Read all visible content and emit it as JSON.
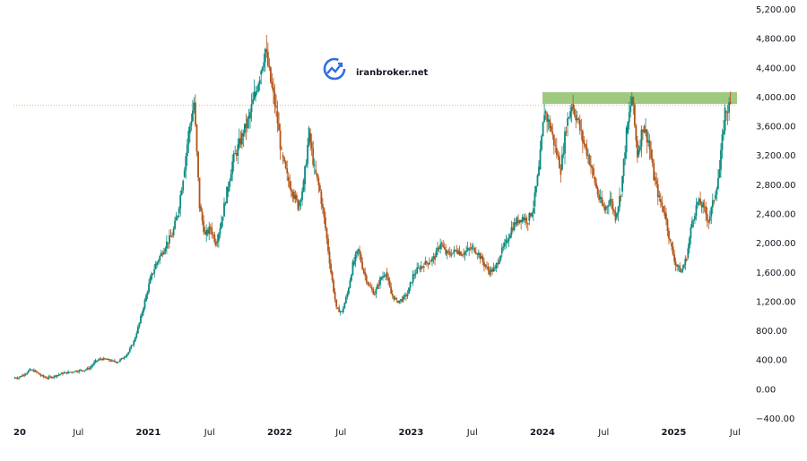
{
  "watermark": {
    "text": "iranbroker.net",
    "icon": "growth-chart-icon"
  },
  "colors": {
    "up": "#0b8a7e",
    "down": "#b25418",
    "resistance_zone": "#8fbf6a",
    "price_line": "#f0b35a",
    "axis_text": "#131722"
  },
  "chart_data": {
    "type": "candlestick",
    "title": "",
    "xlabel": "",
    "ylabel": "",
    "ylim": [
      -400,
      5200
    ],
    "y_ticks": [
      "5,200.00",
      "4,800.00",
      "4,400.00",
      "4,000.00",
      "3,600.00",
      "3,200.00",
      "2,800.00",
      "2,400.00",
      "2,000.00",
      "1,600.00",
      "1,200.00",
      "800.00",
      "400.00",
      "0.00",
      "−400.00"
    ],
    "y_tick_values": [
      5200,
      4800,
      4400,
      4000,
      3600,
      3200,
      2800,
      2400,
      2000,
      1600,
      1200,
      800,
      400,
      0,
      -400
    ],
    "x_ticks": [
      {
        "label": "20",
        "month": 0,
        "bold": true
      },
      {
        "label": "Jul",
        "month": 6,
        "bold": false
      },
      {
        "label": "2021",
        "month": 12,
        "bold": true
      },
      {
        "label": "Jul",
        "month": 18,
        "bold": false
      },
      {
        "label": "2022",
        "month": 24,
        "bold": true
      },
      {
        "label": "Jul",
        "month": 30,
        "bold": false
      },
      {
        "label": "2023",
        "month": 36,
        "bold": true
      },
      {
        "label": "Jul",
        "month": 42,
        "bold": false
      },
      {
        "label": "2024",
        "month": 48,
        "bold": true
      },
      {
        "label": "Jul",
        "month": 54,
        "bold": false
      },
      {
        "label": "2025",
        "month": 60,
        "bold": true
      },
      {
        "label": "Jul",
        "month": 66,
        "bold": false
      }
    ],
    "x_range_months": [
      0,
      70
    ],
    "current_price": 3880,
    "resistance_zone": {
      "low": 3900,
      "high": 4060,
      "start_month": 48,
      "end_month": 70
    },
    "series": [
      {
        "type": "candlestick",
        "values": [
          [
            0.0,
            150
          ],
          [
            0.5,
            160
          ],
          [
            1.0,
            200
          ],
          [
            1.5,
            260
          ],
          [
            2.0,
            240
          ],
          [
            2.5,
            180
          ],
          [
            3.0,
            150
          ],
          [
            3.5,
            160
          ],
          [
            4.0,
            190
          ],
          [
            4.5,
            210
          ],
          [
            5.0,
            225
          ],
          [
            5.5,
            240
          ],
          [
            6.0,
            250
          ],
          [
            6.5,
            260
          ],
          [
            7.0,
            290
          ],
          [
            7.5,
            380
          ],
          [
            8.0,
            410
          ],
          [
            8.5,
            400
          ],
          [
            9.0,
            380
          ],
          [
            9.5,
            370
          ],
          [
            10.0,
            420
          ],
          [
            10.5,
            500
          ],
          [
            11.0,
            650
          ],
          [
            11.5,
            900
          ],
          [
            12.0,
            1200
          ],
          [
            12.5,
            1500
          ],
          [
            13.0,
            1700
          ],
          [
            13.5,
            1850
          ],
          [
            14.0,
            2000
          ],
          [
            14.5,
            2100
          ],
          [
            15.0,
            2400
          ],
          [
            15.5,
            2900
          ],
          [
            16.0,
            3500
          ],
          [
            16.5,
            3920
          ],
          [
            17.0,
            2500
          ],
          [
            17.5,
            2100
          ],
          [
            18.0,
            2200
          ],
          [
            18.5,
            2000
          ],
          [
            19.0,
            2300
          ],
          [
            19.5,
            2700
          ],
          [
            20.0,
            3100
          ],
          [
            20.5,
            3300
          ],
          [
            21.0,
            3500
          ],
          [
            21.5,
            3700
          ],
          [
            22.0,
            4000
          ],
          [
            22.5,
            4300
          ],
          [
            23.0,
            4650
          ],
          [
            23.5,
            4200
          ],
          [
            24.0,
            3800
          ],
          [
            24.5,
            3200
          ],
          [
            25.0,
            2900
          ],
          [
            25.5,
            2700
          ],
          [
            26.0,
            2500
          ],
          [
            26.5,
            2800
          ],
          [
            27.0,
            3500
          ],
          [
            27.5,
            3000
          ],
          [
            28.0,
            2700
          ],
          [
            28.5,
            2200
          ],
          [
            29.0,
            1600
          ],
          [
            29.5,
            1100
          ],
          [
            30.0,
            1050
          ],
          [
            30.5,
            1300
          ],
          [
            31.0,
            1700
          ],
          [
            31.5,
            1900
          ],
          [
            32.0,
            1600
          ],
          [
            32.5,
            1400
          ],
          [
            33.0,
            1300
          ],
          [
            33.5,
            1500
          ],
          [
            34.0,
            1600
          ],
          [
            34.5,
            1300
          ],
          [
            35.0,
            1200
          ],
          [
            35.5,
            1220
          ],
          [
            36.0,
            1300
          ],
          [
            36.5,
            1550
          ],
          [
            37.0,
            1650
          ],
          [
            37.5,
            1700
          ],
          [
            38.0,
            1750
          ],
          [
            38.5,
            1800
          ],
          [
            39.0,
            2000
          ],
          [
            39.5,
            1850
          ],
          [
            40.0,
            1850
          ],
          [
            40.5,
            1900
          ],
          [
            41.0,
            1850
          ],
          [
            41.5,
            1900
          ],
          [
            42.0,
            1930
          ],
          [
            42.5,
            1850
          ],
          [
            43.0,
            1700
          ],
          [
            43.5,
            1600
          ],
          [
            44.0,
            1650
          ],
          [
            44.5,
            1850
          ],
          [
            45.0,
            2000
          ],
          [
            45.5,
            2200
          ],
          [
            46.0,
            2300
          ],
          [
            46.5,
            2350
          ],
          [
            47.0,
            2300
          ],
          [
            47.5,
            2500
          ],
          [
            48.0,
            3000
          ],
          [
            48.5,
            3800
          ],
          [
            49.0,
            3600
          ],
          [
            49.5,
            3300
          ],
          [
            50.0,
            3000
          ],
          [
            50.5,
            3600
          ],
          [
            51.0,
            3900
          ],
          [
            51.5,
            3700
          ],
          [
            52.0,
            3400
          ],
          [
            52.5,
            3200
          ],
          [
            53.0,
            2900
          ],
          [
            53.5,
            2600
          ],
          [
            54.0,
            2450
          ],
          [
            54.5,
            2600
          ],
          [
            55.0,
            2350
          ],
          [
            55.5,
            2700
          ],
          [
            56.0,
            3500
          ],
          [
            56.5,
            4000
          ],
          [
            57.0,
            3200
          ],
          [
            57.5,
            3600
          ],
          [
            58.0,
            3400
          ],
          [
            58.5,
            2900
          ],
          [
            59.0,
            2600
          ],
          [
            59.5,
            2400
          ],
          [
            60.0,
            2000
          ],
          [
            60.5,
            1700
          ],
          [
            61.0,
            1600
          ],
          [
            61.5,
            1800
          ],
          [
            62.0,
            2300
          ],
          [
            62.5,
            2550
          ],
          [
            63.0,
            2500
          ],
          [
            63.5,
            2300
          ],
          [
            64.0,
            2600
          ],
          [
            64.5,
            3000
          ],
          [
            65.0,
            3800
          ],
          [
            65.5,
            3880
          ]
        ]
      }
    ]
  }
}
